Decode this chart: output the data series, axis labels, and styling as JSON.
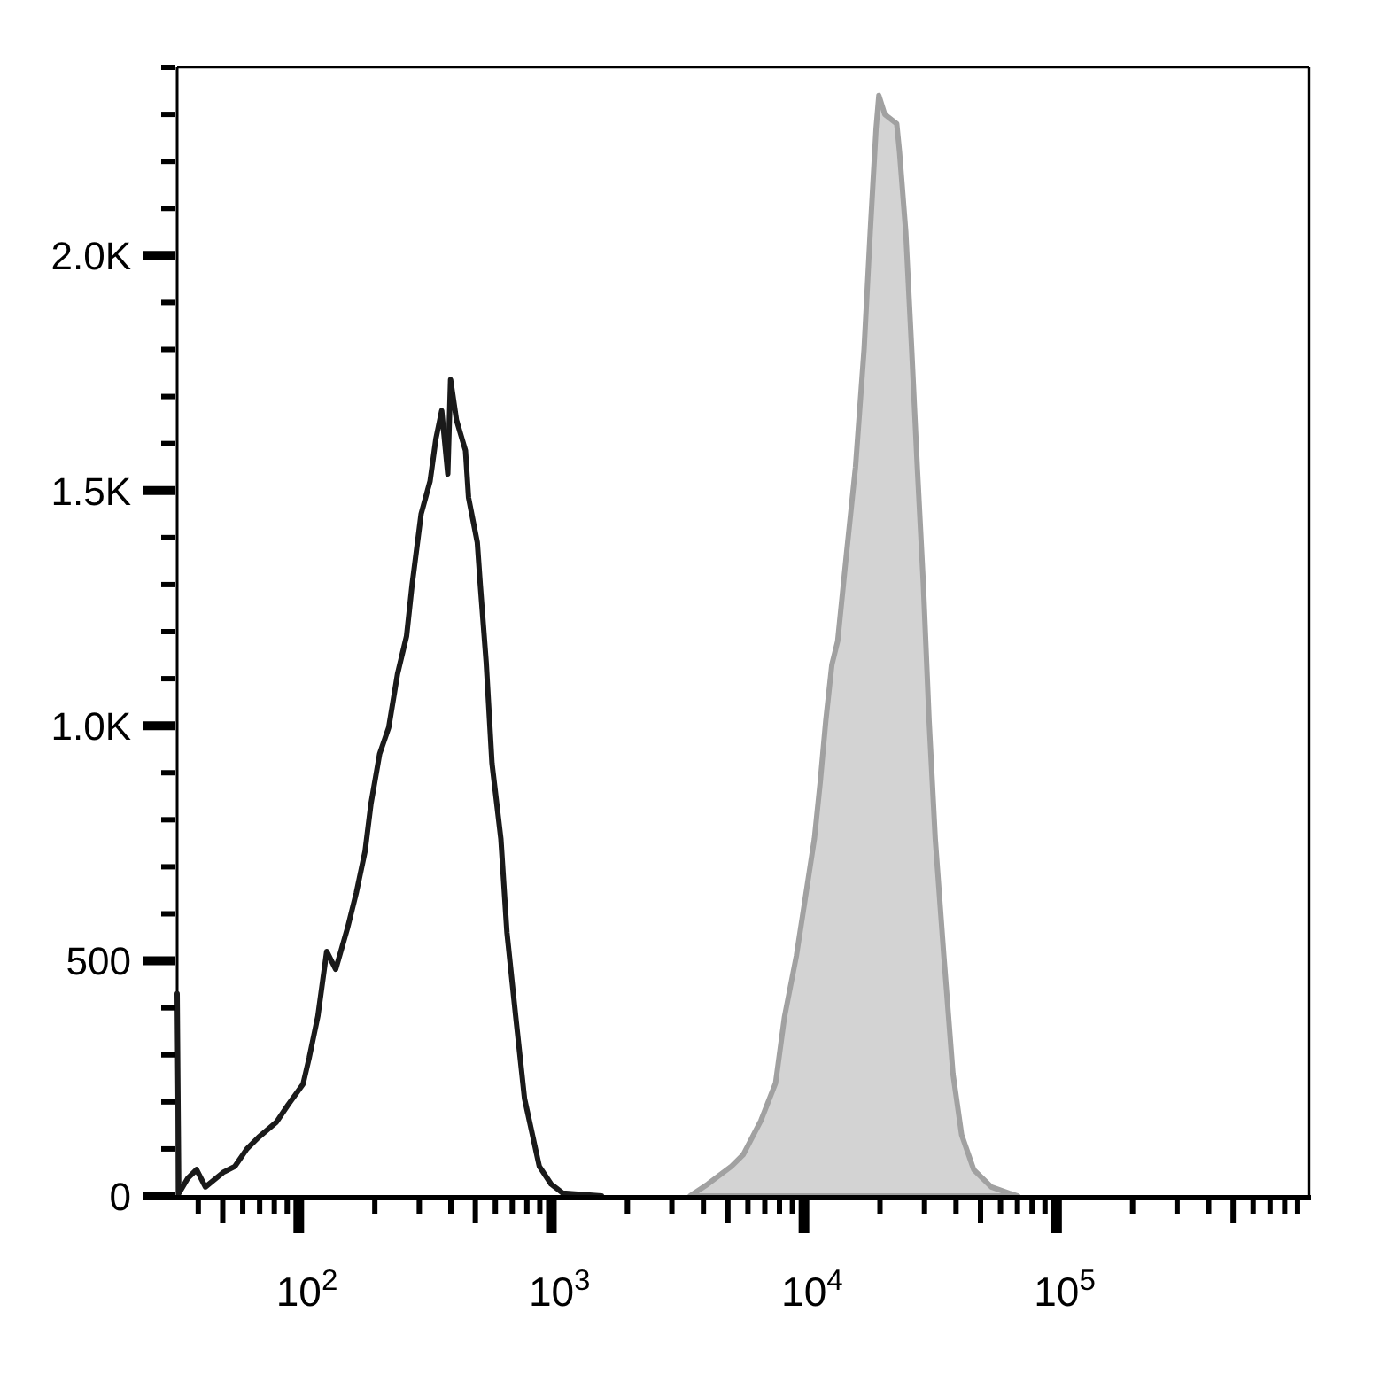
{
  "chart_data": {
    "type": "line",
    "log": "x",
    "xlim": [
      33,
      1000000
    ],
    "ylim": [
      0,
      2400
    ],
    "xticks": [
      {
        "value": 40,
        "label": null
      },
      {
        "value": 50,
        "label": null
      },
      {
        "value": 60,
        "label": null
      },
      {
        "value": 70,
        "label": null
      },
      {
        "value": 80,
        "label": null
      },
      {
        "value": 90,
        "label": null
      },
      {
        "value": 100,
        "label": "10$^{2}$"
      },
      {
        "value": 200,
        "label": null
      },
      {
        "value": 300,
        "label": null
      },
      {
        "value": 400,
        "label": null
      },
      {
        "value": 500,
        "label": null
      },
      {
        "value": 600,
        "label": null
      },
      {
        "value": 700,
        "label": null
      },
      {
        "value": 800,
        "label": null
      },
      {
        "value": 900,
        "label": null
      },
      {
        "value": 1000,
        "label": "10$^{3}$"
      },
      {
        "value": 2000,
        "label": null
      },
      {
        "value": 3000,
        "label": null
      },
      {
        "value": 4000,
        "label": null
      },
      {
        "value": 5000,
        "label": null
      },
      {
        "value": 6000,
        "label": null
      },
      {
        "value": 7000,
        "label": null
      },
      {
        "value": 8000,
        "label": null
      },
      {
        "value": 9000,
        "label": null
      },
      {
        "value": 10000,
        "label": "10$^{4}$"
      },
      {
        "value": 20000,
        "label": null
      },
      {
        "value": 30000,
        "label": null
      },
      {
        "value": 40000,
        "label": null
      },
      {
        "value": 50000,
        "label": null
      },
      {
        "value": 60000,
        "label": null
      },
      {
        "value": 70000,
        "label": null
      },
      {
        "value": 80000,
        "label": null
      },
      {
        "value": 90000,
        "label": null
      },
      {
        "value": 100000,
        "label": "10$^{5}$"
      },
      {
        "value": 200000,
        "label": null
      },
      {
        "value": 300000,
        "label": null
      },
      {
        "value": 400000,
        "label": null
      },
      {
        "value": 500000,
        "label": null
      },
      {
        "value": 600000,
        "label": null
      },
      {
        "value": 700000,
        "label": null
      },
      {
        "value": 800000,
        "label": null
      },
      {
        "value": 900000,
        "label": null
      }
    ],
    "yticks": [
      0,
      {
        "value": 100,
        "label": null
      },
      {
        "value": 200,
        "label": null
      },
      {
        "value": 300,
        "label": null
      },
      {
        "value": 400,
        "label": null
      },
      500,
      {
        "value": 600,
        "label": null
      },
      {
        "value": 700,
        "label": null
      },
      {
        "value": 800,
        "label": null
      },
      {
        "value": 900,
        "label": null
      },
      {
        "value": 1000,
        "label": "1.0K"
      },
      {
        "value": 1100,
        "label": null
      },
      {
        "value": 1200,
        "label": null
      },
      {
        "value": 1300,
        "label": null
      },
      {
        "value": 1400,
        "label": null
      },
      {
        "value": 1500,
        "label": "1.5K"
      },
      {
        "value": 1600,
        "label": null
      },
      {
        "value": 1700,
        "label": null
      },
      {
        "value": 1800,
        "label": null
      },
      {
        "value": 1900,
        "label": null
      },
      {
        "value": 2000,
        "label": "2.0K"
      },
      {
        "value": 2100,
        "label": null
      },
      {
        "value": 2200,
        "label": null
      },
      {
        "value": 2300,
        "label": null
      },
      {
        "value": 2400,
        "label": null
      }
    ],
    "series": [
      {
        "type": "area",
        "color": "#d3d3d3",
        "x": [
          3540,
          4160,
          5160,
          5750,
          6750,
          7720,
          8370,
          9330,
          10100,
          11000,
          11600,
          12200,
          12900,
          13600,
          14700,
          16000,
          17300,
          18300,
          19300,
          19800,
          20900,
          23300,
          23900,
          25300,
          26700,
          28100,
          29700,
          31300,
          33100,
          35800,
          38900,
          42100,
          47000,
          55200,
          64800,
          70300
        ],
        "values": [
          0,
          25,
          63,
          88,
          160,
          240,
          380,
          510,
          630,
          760,
          880,
          1010,
          1130,
          1180,
          1360,
          1550,
          1800,
          2050,
          2270,
          2340,
          2300,
          2280,
          2220,
          2050,
          1800,
          1550,
          1300,
          1010,
          760,
          510,
          260,
          130,
          56,
          19,
          6,
          0
        ]
      },
      {
        "color": "#1a1a1a",
        "x": [
          33,
          33.5,
          36.4,
          39.4,
          42.7,
          50.2,
          55.9,
          62.3,
          69.4,
          81.6,
          90.8,
          104,
          110,
          119,
          129,
          140,
          156,
          169,
          183,
          193,
          209,
          227,
          246,
          267,
          281,
          305,
          331,
          349,
          368,
          389,
          399,
          421,
          457,
          470,
          509,
          523,
          552,
          582,
          631,
          667,
          723,
          783,
          896,
          998,
          1110,
          1580
        ],
        "values": [
          430,
          5,
          38,
          56,
          19,
          50,
          63,
          100,
          125,
          157,
          194,
          238,
          294,
          382,
          520,
          482,
          570,
          645,
          733,
          833,
          940,
          996,
          1110,
          1190,
          1300,
          1450,
          1520,
          1610,
          1670,
          1535,
          1736,
          1650,
          1585,
          1485,
          1390,
          1300,
          1135,
          920,
          760,
          560,
          380,
          207,
          63,
          25,
          6,
          0
        ]
      }
    ]
  }
}
